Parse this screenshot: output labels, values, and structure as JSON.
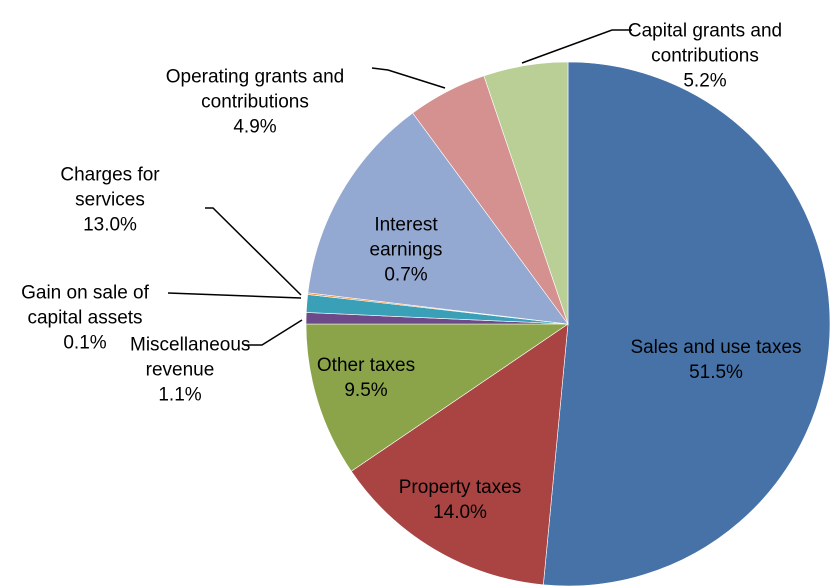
{
  "chart_data": {
    "type": "pie",
    "categories": [
      "Sales and use taxes",
      "Property taxes",
      "Other taxes",
      "Interest earnings",
      "Miscellaneous revenue",
      "Gain on sale of capital assets",
      "Charges for services",
      "Operating grants and contributions",
      "Capital grants and contributions"
    ],
    "values": [
      51.5,
      14.0,
      9.5,
      0.7,
      1.1,
      0.1,
      13.0,
      4.9,
      5.2
    ],
    "value_labels": [
      "51.5%",
      "14.0%",
      "9.5%",
      "0.7%",
      "1.1%",
      "0.1%",
      "13.0%",
      "4.9%",
      "5.2%"
    ],
    "colors": [
      "#4672a8",
      "#a94442",
      "#8ba44a",
      "#6c4a8a",
      "#3aa0b8",
      "#e8913c",
      "#94a9d1",
      "#d59090",
      "#b9cf96"
    ]
  }
}
